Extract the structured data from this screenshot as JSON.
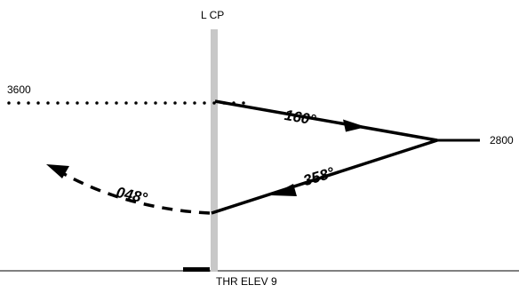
{
  "fix_label": "L CP",
  "altitudes": {
    "upper": "3600",
    "lower": "2800"
  },
  "headings": {
    "outbound": "160°",
    "inbound": "358°",
    "departure": "048°"
  },
  "threshold_label": "THR ELEV 9",
  "colors": {
    "ink": "#000000",
    "fix_bar": "#c8c8c8",
    "background": "#ffffff"
  }
}
